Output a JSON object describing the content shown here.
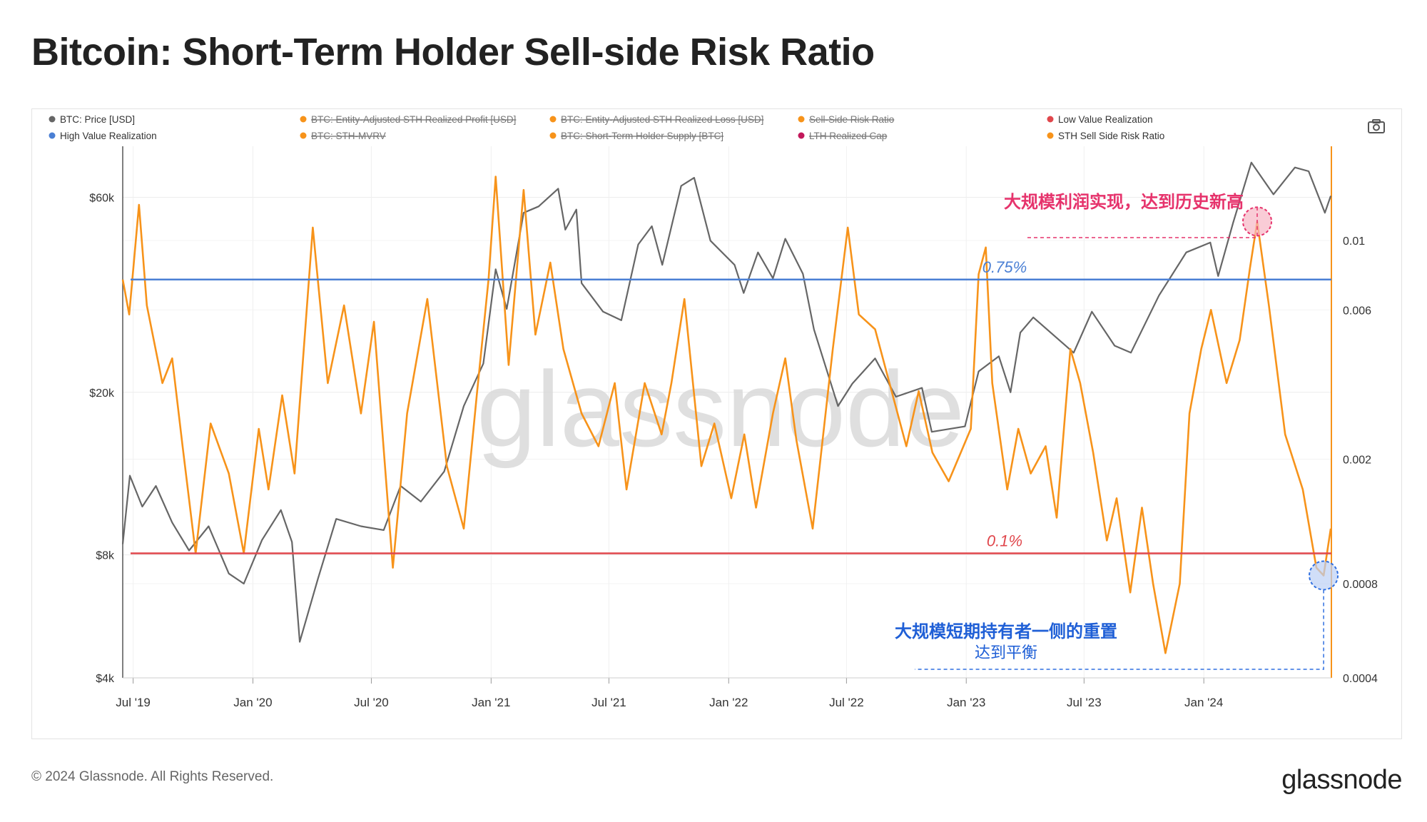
{
  "title": "Bitcoin: Short-Term Holder Sell-side Risk Ratio",
  "footer": {
    "copyright": "© 2024 Glassnode. All Rights Reserved.",
    "logo": "glassnode"
  },
  "watermark": "glassnode",
  "legend": [
    {
      "label": "BTC: Price [USD]",
      "color": "#666666",
      "struck": false
    },
    {
      "label": "BTC: Entity-Adjusted STH Realized Profit [USD]",
      "color": "#f7931a",
      "struck": true
    },
    {
      "label": "BTC: Entity-Adjusted STH Realized Loss [USD]",
      "color": "#f7931a",
      "struck": true
    },
    {
      "label": "Sell-Side Risk Ratio",
      "color": "#f7931a",
      "struck": true
    },
    {
      "label": "Low Value Realization",
      "color": "#e0474c",
      "struck": false
    },
    {
      "label": "High Value Realization",
      "color": "#4a7fd4",
      "struck": false
    },
    {
      "label": "BTC: STH-MVRV",
      "color": "#f7931a",
      "struck": true
    },
    {
      "label": "BTC: Short-Term Holder Supply [BTC]",
      "color": "#f7931a",
      "struck": true
    },
    {
      "label": "LTH Realized Cap",
      "color": "#c2185b",
      "struck": true
    },
    {
      "label": "STH Sell Side Risk Ratio",
      "color": "#f7931a",
      "struck": false
    }
  ],
  "annotations": {
    "top": "大规模利润实现，达到历史新高",
    "bottom_line1": "大规模短期持有者一侧的重置",
    "bottom_line2": "达到平衡",
    "high_label": "0.75%",
    "low_label": "0.1%"
  },
  "chart_data": {
    "type": "line",
    "title": "Bitcoin: Short-Term Holder Sell-side Risk Ratio",
    "x_ticks": [
      "Jul '19",
      "Jan '20",
      "Jul '20",
      "Jan '21",
      "Jul '21",
      "Jan '22",
      "Jul '22",
      "Jan '23",
      "Jul '23",
      "Jan '24"
    ],
    "x_tick_dates": [
      "2019-07-01",
      "2020-01-01",
      "2020-07-01",
      "2021-01-01",
      "2021-07-01",
      "2022-01-01",
      "2022-07-01",
      "2023-01-01",
      "2023-07-01",
      "2024-01-01"
    ],
    "x_range": [
      "2019-06-15",
      "2024-07-15"
    ],
    "y_left": {
      "scale": "log",
      "range": [
        4000,
        80000
      ],
      "ticks": [
        4000,
        8000,
        20000,
        60000
      ],
      "tick_labels": [
        "$4k",
        "$8k",
        "$20k",
        "$60k"
      ]
    },
    "y_right": {
      "scale": "log",
      "range": [
        0.0004,
        0.02
      ],
      "ticks": [
        0.0004,
        0.0008,
        0.002,
        0.006,
        0.01
      ],
      "tick_labels": [
        "0.0004",
        "0.0008",
        "0.002",
        "0.006",
        "0.01"
      ]
    },
    "horizontal_lines": [
      {
        "name": "High Value Realization",
        "value": 0.0075,
        "label": "0.75%",
        "color": "#4a7fd4"
      },
      {
        "name": "Low Value Realization",
        "value": 0.001,
        "label": "0.1%",
        "color": "#e0474c"
      }
    ],
    "series": [
      {
        "name": "BTC: Price [USD]",
        "axis": "left",
        "color": "#666666",
        "points": [
          [
            "2019-06-15",
            8500
          ],
          [
            "2019-06-26",
            12500
          ],
          [
            "2019-07-15",
            10500
          ],
          [
            "2019-08-05",
            11800
          ],
          [
            "2019-08-30",
            9600
          ],
          [
            "2019-09-25",
            8200
          ],
          [
            "2019-10-25",
            9400
          ],
          [
            "2019-11-25",
            7200
          ],
          [
            "2019-12-18",
            6800
          ],
          [
            "2020-01-15",
            8700
          ],
          [
            "2020-02-13",
            10300
          ],
          [
            "2020-03-01",
            8600
          ],
          [
            "2020-03-13",
            4900
          ],
          [
            "2020-04-10",
            7000
          ],
          [
            "2020-05-08",
            9800
          ],
          [
            "2020-06-15",
            9400
          ],
          [
            "2020-07-20",
            9200
          ],
          [
            "2020-08-15",
            11800
          ],
          [
            "2020-09-15",
            10800
          ],
          [
            "2020-10-21",
            12800
          ],
          [
            "2020-11-20",
            18500
          ],
          [
            "2020-12-20",
            23500
          ],
          [
            "2021-01-08",
            40000
          ],
          [
            "2021-01-25",
            32000
          ],
          [
            "2021-02-20",
            55000
          ],
          [
            "2021-03-15",
            57000
          ],
          [
            "2021-04-14",
            63000
          ],
          [
            "2021-04-25",
            50000
          ],
          [
            "2021-05-12",
            56000
          ],
          [
            "2021-05-20",
            37000
          ],
          [
            "2021-06-22",
            31500
          ],
          [
            "2021-07-20",
            30000
          ],
          [
            "2021-08-15",
            46000
          ],
          [
            "2021-09-05",
            51000
          ],
          [
            "2021-09-21",
            41000
          ],
          [
            "2021-10-20",
            64000
          ],
          [
            "2021-11-09",
            67000
          ],
          [
            "2021-12-04",
            47000
          ],
          [
            "2022-01-10",
            41000
          ],
          [
            "2022-01-24",
            35000
          ],
          [
            "2022-02-15",
            44000
          ],
          [
            "2022-03-10",
            38000
          ],
          [
            "2022-03-29",
            47500
          ],
          [
            "2022-04-25",
            39000
          ],
          [
            "2022-05-12",
            28500
          ],
          [
            "2022-06-18",
            18500
          ],
          [
            "2022-07-10",
            21000
          ],
          [
            "2022-08-14",
            24200
          ],
          [
            "2022-09-15",
            19500
          ],
          [
            "2022-10-25",
            20500
          ],
          [
            "2022-11-09",
            16000
          ],
          [
            "2022-12-30",
            16500
          ],
          [
            "2023-01-20",
            22500
          ],
          [
            "2023-02-20",
            24500
          ],
          [
            "2023-03-10",
            20000
          ],
          [
            "2023-03-25",
            28000
          ],
          [
            "2023-04-14",
            30500
          ],
          [
            "2023-06-15",
            25000
          ],
          [
            "2023-07-13",
            31500
          ],
          [
            "2023-08-17",
            26000
          ],
          [
            "2023-09-11",
            25000
          ],
          [
            "2023-10-24",
            34500
          ],
          [
            "2023-12-05",
            44000
          ],
          [
            "2024-01-11",
            46500
          ],
          [
            "2024-01-23",
            38500
          ],
          [
            "2024-02-15",
            52000
          ],
          [
            "2024-03-14",
            73000
          ],
          [
            "2024-04-17",
            61000
          ],
          [
            "2024-05-20",
            71000
          ],
          [
            "2024-06-10",
            69500
          ],
          [
            "2024-07-05",
            55000
          ],
          [
            "2024-07-14",
            60500
          ]
        ]
      },
      {
        "name": "STH Sell Side Risk Ratio",
        "axis": "right",
        "color": "#f7931a",
        "points": [
          [
            "2019-06-15",
            0.0075
          ],
          [
            "2019-06-25",
            0.0058
          ],
          [
            "2019-07-10",
            0.013
          ],
          [
            "2019-07-22",
            0.0062
          ],
          [
            "2019-08-15",
            0.0035
          ],
          [
            "2019-08-30",
            0.0042
          ],
          [
            "2019-09-15",
            0.0022
          ],
          [
            "2019-10-05",
            0.001
          ],
          [
            "2019-10-28",
            0.0026
          ],
          [
            "2019-11-25",
            0.0018
          ],
          [
            "2019-12-18",
            0.001
          ],
          [
            "2020-01-10",
            0.0025
          ],
          [
            "2020-01-25",
            0.0016
          ],
          [
            "2020-02-15",
            0.0032
          ],
          [
            "2020-03-05",
            0.0018
          ],
          [
            "2020-04-02",
            0.011
          ],
          [
            "2020-04-25",
            0.0035
          ],
          [
            "2020-05-20",
            0.0062
          ],
          [
            "2020-06-15",
            0.0028
          ],
          [
            "2020-07-05",
            0.0055
          ],
          [
            "2020-07-28",
            0.0013
          ],
          [
            "2020-08-03",
            0.0009
          ],
          [
            "2020-08-25",
            0.0028
          ],
          [
            "2020-09-25",
            0.0065
          ],
          [
            "2020-10-25",
            0.0019
          ],
          [
            "2020-11-20",
            0.0012
          ],
          [
            "2020-12-10",
            0.0032
          ],
          [
            "2020-12-28",
            0.0075
          ],
          [
            "2021-01-08",
            0.016
          ],
          [
            "2021-01-28",
            0.004
          ],
          [
            "2021-02-20",
            0.0145
          ],
          [
            "2021-03-10",
            0.005
          ],
          [
            "2021-04-02",
            0.0085
          ],
          [
            "2021-04-22",
            0.0045
          ],
          [
            "2021-05-20",
            0.0028
          ],
          [
            "2021-06-15",
            0.0022
          ],
          [
            "2021-07-10",
            0.0035
          ],
          [
            "2021-07-28",
            0.0016
          ],
          [
            "2021-08-25",
            0.0035
          ],
          [
            "2021-09-20",
            0.0024
          ],
          [
            "2021-10-05",
            0.0035
          ],
          [
            "2021-10-25",
            0.0065
          ],
          [
            "2021-11-20",
            0.0019
          ],
          [
            "2021-12-10",
            0.0026
          ],
          [
            "2022-01-05",
            0.0015
          ],
          [
            "2022-01-25",
            0.0024
          ],
          [
            "2022-02-12",
            0.0014
          ],
          [
            "2022-03-10",
            0.0028
          ],
          [
            "2022-03-29",
            0.0042
          ],
          [
            "2022-04-15",
            0.0023
          ],
          [
            "2022-05-10",
            0.0012
          ],
          [
            "2022-06-10",
            0.0045
          ],
          [
            "2022-07-03",
            0.011
          ],
          [
            "2022-07-20",
            0.0058
          ],
          [
            "2022-08-14",
            0.0052
          ],
          [
            "2022-09-10",
            0.0032
          ],
          [
            "2022-10-01",
            0.0022
          ],
          [
            "2022-10-20",
            0.0033
          ],
          [
            "2022-11-10",
            0.0021
          ],
          [
            "2022-12-05",
            0.0017
          ],
          [
            "2023-01-08",
            0.0025
          ],
          [
            "2023-01-20",
            0.0078
          ],
          [
            "2023-01-31",
            0.0095
          ],
          [
            "2023-02-10",
            0.0035
          ],
          [
            "2023-03-05",
            0.0016
          ],
          [
            "2023-03-22",
            0.0025
          ],
          [
            "2023-04-10",
            0.0018
          ],
          [
            "2023-05-03",
            0.0022
          ],
          [
            "2023-05-20",
            0.0013
          ],
          [
            "2023-06-10",
            0.0045
          ],
          [
            "2023-06-25",
            0.0035
          ],
          [
            "2023-07-15",
            0.0021
          ],
          [
            "2023-08-05",
            0.0011
          ],
          [
            "2023-08-20",
            0.0015
          ],
          [
            "2023-09-10",
            0.00075
          ],
          [
            "2023-09-28",
            0.0014
          ],
          [
            "2023-10-15",
            0.0008
          ],
          [
            "2023-11-03",
            0.00048
          ],
          [
            "2023-11-25",
            0.0008
          ],
          [
            "2023-12-10",
            0.0028
          ],
          [
            "2023-12-28",
            0.0045
          ],
          [
            "2024-01-12",
            0.006
          ],
          [
            "2024-02-05",
            0.0035
          ],
          [
            "2024-02-25",
            0.0048
          ],
          [
            "2024-03-12",
            0.0082
          ],
          [
            "2024-03-23",
            0.0115
          ],
          [
            "2024-04-10",
            0.0062
          ],
          [
            "2024-05-05",
            0.0024
          ],
          [
            "2024-06-01",
            0.0016
          ],
          [
            "2024-06-22",
            0.0009
          ],
          [
            "2024-07-03",
            0.00085
          ],
          [
            "2024-07-14",
            0.0012
          ]
        ]
      }
    ],
    "legend_placement": "top",
    "grid": true
  }
}
